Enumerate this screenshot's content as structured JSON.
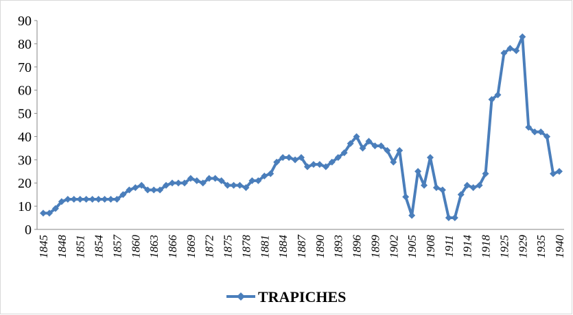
{
  "chart_data": {
    "type": "line",
    "categories": [
      "1845",
      null,
      null,
      "1848",
      null,
      null,
      "1851",
      null,
      null,
      "1854",
      null,
      null,
      "1857",
      null,
      null,
      "1860",
      null,
      null,
      "1863",
      null,
      null,
      "1866",
      null,
      null,
      "1869",
      null,
      null,
      "1872",
      null,
      null,
      "1875",
      null,
      null,
      "1878",
      null,
      null,
      "1881",
      null,
      null,
      "1884",
      null,
      null,
      "1887",
      null,
      null,
      "1890",
      null,
      null,
      "1893",
      null,
      null,
      "1896",
      null,
      null,
      "1899",
      null,
      null,
      "1902",
      null,
      null,
      "1905",
      null,
      null,
      "1908",
      null,
      null,
      "1911",
      null,
      null,
      "1914",
      null,
      null,
      "1918",
      null,
      null,
      "1925",
      null,
      null,
      "1929",
      null,
      null,
      "1935",
      null,
      null,
      "1940"
    ],
    "series": [
      {
        "name": "TRAPICHES",
        "color": "#4a7ebb",
        "values": [
          7,
          7,
          9,
          12,
          13,
          13,
          13,
          13,
          13,
          13,
          13,
          13,
          13,
          15,
          17,
          18,
          19,
          17,
          17,
          17,
          19,
          20,
          20,
          20,
          22,
          21,
          20,
          22,
          22,
          21,
          19,
          19,
          19,
          18,
          21,
          21,
          23,
          24,
          29,
          31,
          31,
          30,
          31,
          27,
          28,
          28,
          27,
          29,
          31,
          33,
          37,
          40,
          35,
          38,
          36,
          36,
          34,
          29,
          34,
          14,
          6,
          25,
          19,
          31,
          18,
          17,
          5,
          5,
          15,
          19,
          18,
          19,
          24,
          56,
          58,
          76,
          78,
          77,
          83,
          44,
          42,
          42,
          40,
          24,
          25
        ]
      }
    ],
    "ylim": [
      0,
      90
    ],
    "yticks": [
      0,
      10,
      20,
      30,
      40,
      50,
      60,
      70,
      80,
      90
    ],
    "grid": false,
    "legend": "bottom"
  }
}
